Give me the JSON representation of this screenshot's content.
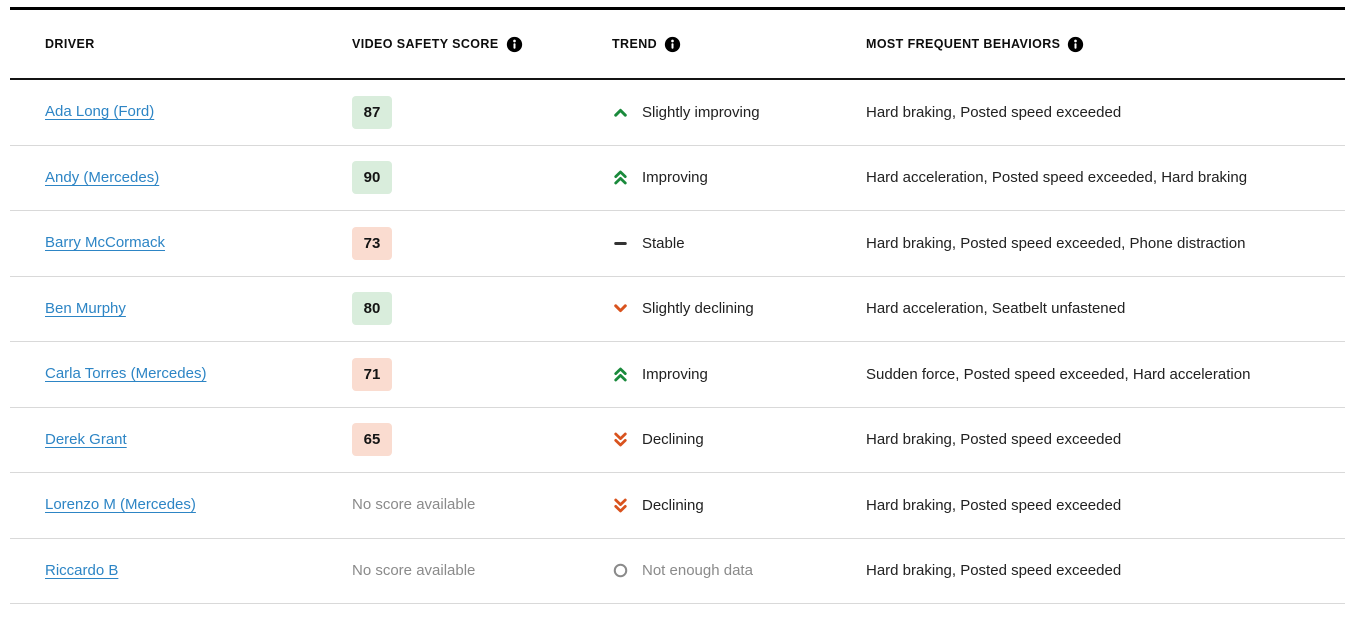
{
  "colors": {
    "link": "#2d85c5",
    "trend_green": "#1a8a3c",
    "trend_orange": "#d9531e",
    "neutral_dark": "#333333",
    "muted": "#8a8a8a",
    "badge_green_bg": "#d9eddc",
    "badge_red_bg": "#fadcd0"
  },
  "table": {
    "columns": [
      {
        "label": "DRIVER",
        "info_icon": false
      },
      {
        "label": "VIDEO SAFETY SCORE",
        "info_icon": true
      },
      {
        "label": "TREND",
        "info_icon": true
      },
      {
        "label": "MOST FREQUENT BEHAVIORS",
        "info_icon": true
      }
    ],
    "no_score_text": "No score available",
    "rows": [
      {
        "driver": "Ada Long (Ford)",
        "score": 87,
        "score_tone": "green",
        "trend": {
          "type": "up-single",
          "label": "Slightly improving"
        },
        "behaviors": "Hard braking, Posted speed exceeded"
      },
      {
        "driver": "Andy (Mercedes)",
        "score": 90,
        "score_tone": "green",
        "trend": {
          "type": "up-double",
          "label": "Improving"
        },
        "behaviors": "Hard acceleration, Posted speed exceeded, Hard braking"
      },
      {
        "driver": "Barry McCormack",
        "score": 73,
        "score_tone": "red",
        "trend": {
          "type": "stable",
          "label": "Stable"
        },
        "behaviors": "Hard braking, Posted speed exceeded, Phone distraction"
      },
      {
        "driver": "Ben Murphy",
        "score": 80,
        "score_tone": "green",
        "trend": {
          "type": "down-single",
          "label": "Slightly declining"
        },
        "behaviors": "Hard acceleration, Seatbelt unfastened"
      },
      {
        "driver": "Carla Torres (Mercedes)",
        "score": 71,
        "score_tone": "red",
        "trend": {
          "type": "up-double",
          "label": "Improving"
        },
        "behaviors": "Sudden force, Posted speed exceeded, Hard acceleration"
      },
      {
        "driver": "Derek Grant",
        "score": 65,
        "score_tone": "red",
        "trend": {
          "type": "down-double",
          "label": "Declining"
        },
        "behaviors": "Hard braking, Posted speed exceeded"
      },
      {
        "driver": "Lorenzo M (Mercedes)",
        "score": null,
        "score_tone": null,
        "trend": {
          "type": "down-double",
          "label": "Declining"
        },
        "behaviors": "Hard braking, Posted speed exceeded"
      },
      {
        "driver": "Riccardo B",
        "score": null,
        "score_tone": null,
        "trend": {
          "type": "none",
          "label": "Not enough data"
        },
        "behaviors": "Hard braking, Posted speed exceeded"
      }
    ]
  }
}
